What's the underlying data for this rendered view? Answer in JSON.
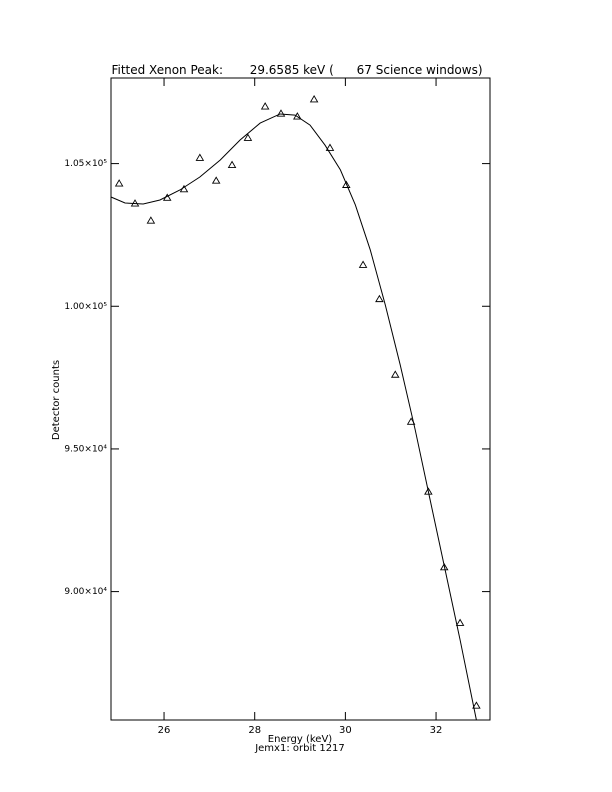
{
  "chart_data": {
    "type": "scatter",
    "title": "Fitted Xenon Peak:       29.6585 keV (      67 Science windows)",
    "x_label": "Energy (keV)",
    "subtitle": "Jemx1: orbit 1217",
    "y_label": "Detector counts",
    "xlim": [
      24.83,
      33.19
    ],
    "xticks": [
      26,
      28,
      30,
      32
    ],
    "ylim": [
      85500,
      108000
    ],
    "yticks": [
      {
        "value": 90000,
        "label": "9.00×10⁴"
      },
      {
        "value": 95000,
        "label": "9.50×10⁴"
      },
      {
        "value": 100000,
        "label": "1.00×10⁵"
      },
      {
        "value": 105000,
        "label": "1.05×10⁵"
      }
    ],
    "color": "#000000",
    "series": [
      {
        "style": "markers",
        "marker": "triangle",
        "x": [
          25.01,
          25.36,
          25.71,
          26.07,
          26.44,
          26.79,
          27.15,
          27.5,
          27.85,
          28.23,
          28.58,
          28.94,
          29.31,
          29.66,
          30.02,
          30.39,
          30.75,
          31.1,
          31.45,
          31.83,
          32.18,
          32.53,
          32.89
        ],
        "values": [
          104300,
          103600,
          103000,
          103800,
          104100,
          105200,
          104400,
          104950,
          105900,
          107000,
          106750,
          106650,
          107250,
          105550,
          104250,
          101450,
          100250,
          97600,
          95950,
          93500,
          90850,
          88900,
          86000
        ]
      },
      {
        "style": "line",
        "x": [
          24.83,
          25.14,
          25.54,
          25.91,
          26.35,
          26.79,
          27.24,
          27.68,
          28.12,
          28.56,
          28.89,
          29.22,
          29.55,
          29.89,
          30.22,
          30.55,
          30.88,
          31.21,
          31.54,
          31.87,
          32.2,
          32.53,
          32.89
        ],
        "values": [
          103830,
          103620,
          103585,
          103725,
          104075,
          104530,
          105125,
          105830,
          106420,
          106740,
          106700,
          106350,
          105650,
          104780,
          103550,
          101970,
          100050,
          97940,
          95670,
          93210,
          90760,
          88310,
          85500
        ]
      }
    ]
  }
}
